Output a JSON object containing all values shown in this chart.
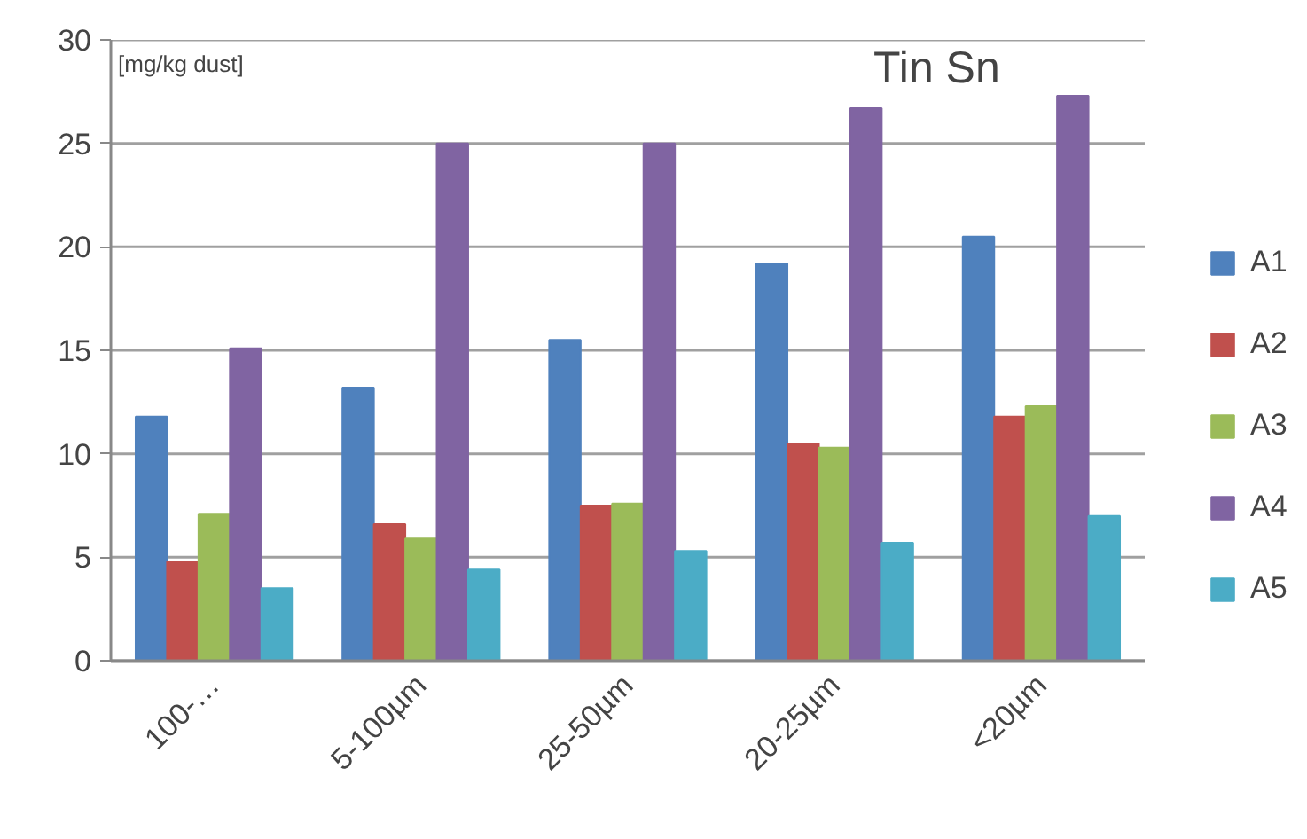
{
  "chart_data": {
    "type": "bar",
    "title": "Tin Sn",
    "annotations": [
      "[mg/kg dust]"
    ],
    "categories": [
      "100-…",
      "5-100µm",
      "25-50µm",
      "20-25µm",
      "<20µm"
    ],
    "series": [
      {
        "name": "A1",
        "color": "#4f81bd",
        "values": [
          11.8,
          13.2,
          15.5,
          19.2,
          20.5
        ]
      },
      {
        "name": "A2",
        "color": "#c0504d",
        "values": [
          4.8,
          6.6,
          7.5,
          10.5,
          11.8
        ]
      },
      {
        "name": "A3",
        "color": "#9bbb59",
        "values": [
          7.1,
          5.9,
          7.6,
          10.3,
          12.3
        ]
      },
      {
        "name": "A4",
        "color": "#8064a2",
        "values": [
          15.1,
          25.0,
          25.0,
          26.7,
          27.3
        ]
      },
      {
        "name": "A5",
        "color": "#4bacc6",
        "values": [
          3.5,
          4.4,
          5.3,
          5.7,
          7.0
        ]
      }
    ],
    "ylim": [
      0,
      30
    ],
    "yticks": [
      0,
      5,
      10,
      15,
      20,
      25,
      30
    ],
    "grid": "y",
    "legend": "right"
  }
}
